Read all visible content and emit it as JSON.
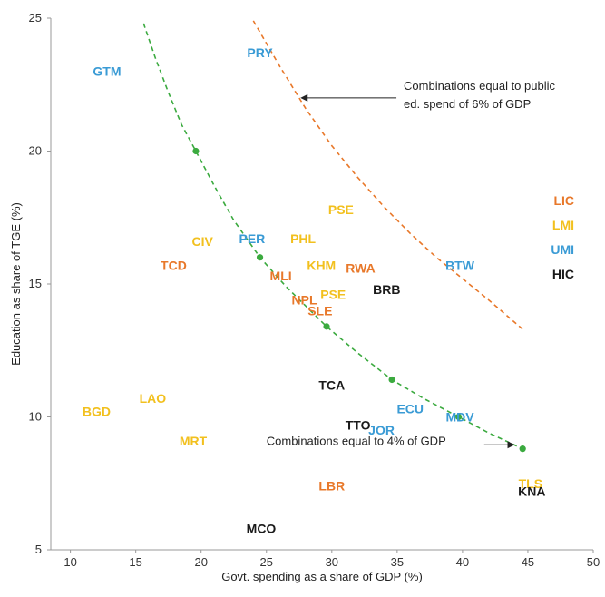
{
  "chart_data": {
    "type": "scatter",
    "xlabel": "Govt. spending as a share of GDP (%)",
    "ylabel": "Education as share of TGE (%)",
    "xlim": [
      8.5,
      50
    ],
    "ylim": [
      5,
      25
    ],
    "xticks": [
      10,
      15,
      20,
      25,
      30,
      35,
      40,
      45,
      50
    ],
    "yticks": [
      5,
      10,
      15,
      20,
      25
    ],
    "grid": false,
    "legend": {
      "placement": "right",
      "items": [
        {
          "key": "LIC",
          "label": "LIC",
          "color": "#E8782A"
        },
        {
          "key": "LMI",
          "label": "LMI",
          "color": "#F2C01E"
        },
        {
          "key": "UMI",
          "label": "UMI",
          "color": "#3A9BD5"
        },
        {
          "key": "HIC",
          "label": "HIC",
          "color": "#1A1A1A"
        }
      ]
    },
    "points": [
      {
        "label": "GTM",
        "x": 12.8,
        "y": 23.0,
        "group": "UMI"
      },
      {
        "label": "PRY",
        "x": 24.5,
        "y": 23.7,
        "group": "UMI"
      },
      {
        "label": "PSE",
        "x": 30.7,
        "y": 17.8,
        "group": "LMI"
      },
      {
        "label": "CIV",
        "x": 20.1,
        "y": 16.6,
        "group": "LMI"
      },
      {
        "label": "PER",
        "x": 23.9,
        "y": 16.7,
        "group": "UMI"
      },
      {
        "label": "PHL",
        "x": 27.8,
        "y": 16.7,
        "group": "LMI"
      },
      {
        "label": "TCD",
        "x": 17.9,
        "y": 15.7,
        "group": "LIC"
      },
      {
        "label": "KHM",
        "x": 29.2,
        "y": 15.7,
        "group": "LMI"
      },
      {
        "label": "RWA",
        "x": 32.2,
        "y": 15.6,
        "group": "LIC"
      },
      {
        "label": "BTW",
        "x": 39.8,
        "y": 15.7,
        "group": "UMI"
      },
      {
        "label": "MLI",
        "x": 26.1,
        "y": 15.3,
        "group": "LIC"
      },
      {
        "label": "BRB",
        "x": 34.2,
        "y": 14.8,
        "group": "HIC"
      },
      {
        "label": "NPL",
        "x": 27.9,
        "y": 14.4,
        "group": "LIC"
      },
      {
        "label": "PSE",
        "x": 30.1,
        "y": 14.6,
        "group": "LMI"
      },
      {
        "label": "SLE",
        "x": 29.1,
        "y": 14.0,
        "group": "LIC"
      },
      {
        "label": "TCA",
        "x": 30.0,
        "y": 11.2,
        "group": "HIC"
      },
      {
        "label": "LAO",
        "x": 16.3,
        "y": 10.7,
        "group": "LMI"
      },
      {
        "label": "BGD",
        "x": 12.0,
        "y": 10.2,
        "group": "LMI"
      },
      {
        "label": "ECU",
        "x": 36.0,
        "y": 10.3,
        "group": "UMI"
      },
      {
        "label": "MDV",
        "x": 39.8,
        "y": 10.0,
        "group": "UMI"
      },
      {
        "label": "TTO",
        "x": 32.0,
        "y": 9.7,
        "group": "HIC"
      },
      {
        "label": "JOR",
        "x": 33.8,
        "y": 9.5,
        "group": "UMI"
      },
      {
        "label": "MRT",
        "x": 19.4,
        "y": 9.1,
        "group": "LMI"
      },
      {
        "label": "LBR",
        "x": 30.0,
        "y": 7.4,
        "group": "LIC"
      },
      {
        "label": "TLS",
        "x": 45.2,
        "y": 7.5,
        "group": "LMI"
      },
      {
        "label": "KNA",
        "x": 45.3,
        "y": 7.2,
        "group": "HIC"
      },
      {
        "label": "MCO",
        "x": 24.6,
        "y": 5.8,
        "group": "HIC"
      }
    ],
    "curves": [
      {
        "name": "4% of GDP",
        "color": "#3BAA3F",
        "x": [
          15.6,
          16.5,
          17.5,
          18.5,
          19.6,
          21,
          22.5,
          24.5,
          26.5,
          29.6,
          32,
          34.6,
          37,
          39.7,
          42,
          44.6
        ],
        "y": [
          24.8,
          23.5,
          22.2,
          21.0,
          20.0,
          18.7,
          17.4,
          16.0,
          14.9,
          13.4,
          12.4,
          11.4,
          10.7,
          10.0,
          9.4,
          8.8
        ],
        "markers_x": [
          19.6,
          24.5,
          29.6,
          34.6,
          39.7,
          44.6
        ],
        "markers_y": [
          20.0,
          16.0,
          13.4,
          11.4,
          10.0,
          8.8
        ]
      },
      {
        "name": "6% of GDP",
        "color": "#E8782A",
        "x": [
          24.0,
          26,
          28,
          30,
          32,
          34,
          36,
          38,
          40,
          42,
          44.6
        ],
        "y": [
          24.9,
          23.2,
          21.6,
          20.2,
          19.0,
          17.9,
          16.9,
          16.0,
          15.2,
          14.4,
          13.3
        ]
      }
    ],
    "annotations": [
      {
        "text_lines": [
          "Combinations equal to public",
          "ed. spend of 6% of GDP"
        ],
        "arrow_to": [
          27.6,
          22.0
        ],
        "text_at": [
          35.5,
          22.1
        ],
        "direction": "left"
      },
      {
        "text_lines": [
          "Combinations equal to 4% of GDP"
        ],
        "arrow_to": [
          44.0,
          8.95
        ],
        "text_at": [
          25.0,
          8.95
        ],
        "direction": "right"
      }
    ]
  }
}
